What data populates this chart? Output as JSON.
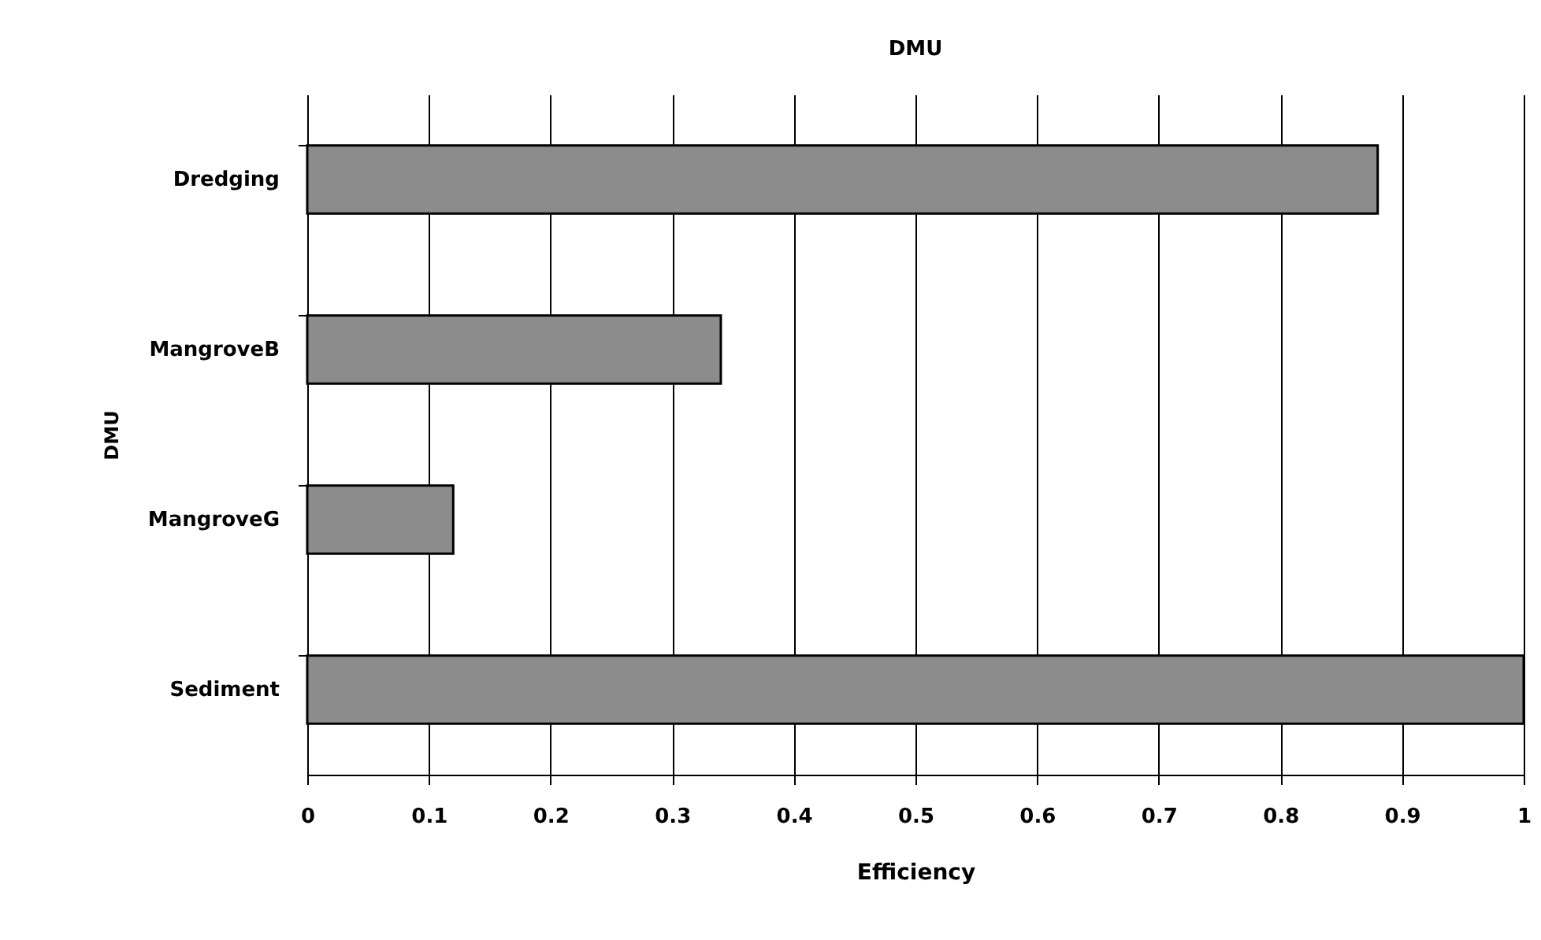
{
  "chart_data": {
    "type": "bar",
    "orientation": "horizontal",
    "title": "DMU",
    "xlabel": "Efficiency",
    "ylabel": "DMU",
    "categories": [
      "Dredging",
      "MangroveB",
      "MangroveG",
      "Sediment"
    ],
    "values": [
      0.88,
      0.34,
      0.12,
      1.0
    ],
    "color": "#8c8c8c",
    "xlim": [
      0,
      1
    ],
    "xticks": [
      0,
      0.1,
      0.2,
      0.3,
      0.4,
      0.5,
      0.6,
      0.7,
      0.8,
      0.9,
      1
    ],
    "grid": "x"
  }
}
